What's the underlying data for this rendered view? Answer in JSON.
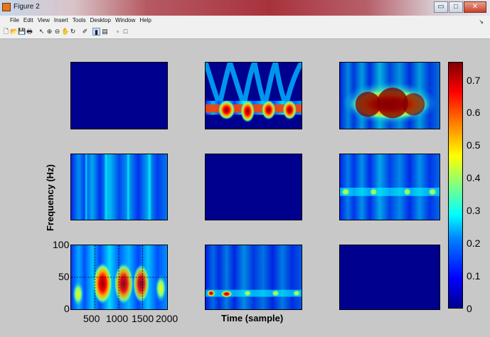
{
  "window": {
    "title": "Figure 2",
    "buttons": {
      "minimize": "▭",
      "maximize": "□",
      "close": "✕"
    }
  },
  "menu": [
    "File",
    "Edit",
    "View",
    "Insert",
    "Tools",
    "Desktop",
    "Window",
    "Help"
  ],
  "menu_dock_arrow": "↘",
  "toolbar": [
    {
      "name": "new-figure-icon",
      "glyph": "🗋"
    },
    {
      "name": "open-file-icon",
      "glyph": "📂"
    },
    {
      "name": "save-icon",
      "glyph": "💾"
    },
    {
      "name": "print-icon",
      "glyph": "🖶"
    },
    {
      "name": "edit-plot-arrow-icon",
      "glyph": "↖"
    },
    {
      "name": "zoom-in-icon",
      "glyph": "⊕"
    },
    {
      "name": "zoom-out-icon",
      "glyph": "⊖"
    },
    {
      "name": "pan-hand-icon",
      "glyph": "✋"
    },
    {
      "name": "rotate-3d-icon",
      "glyph": "↻"
    },
    {
      "name": "data-cursor-icon",
      "glyph": "✐"
    },
    {
      "name": "insert-colorbar-icon",
      "glyph": "▮"
    },
    {
      "name": "insert-legend-icon",
      "glyph": "▤"
    },
    {
      "name": "hide-plot-tools-icon",
      "glyph": "▫"
    },
    {
      "name": "show-plot-tools-icon",
      "glyph": "□"
    }
  ],
  "figure": {
    "ylabel": "Frequency (Hz)",
    "xlabel": "Time (sample)",
    "yticks": [
      "100",
      "50",
      "0"
    ],
    "xticks": [
      "500",
      "1000",
      "1500",
      "2000"
    ],
    "colorbar": {
      "ticks": [
        "0.7",
        "0.6",
        "0.5",
        "0.4",
        "0.3",
        "0.2",
        "0.1",
        "0"
      ],
      "colors": [
        "#00008f",
        "#0000ff",
        "#0080ff",
        "#00ffff",
        "#80ff80",
        "#ffff00",
        "#ff8000",
        "#ff0000",
        "#800000"
      ]
    },
    "panel_background": "#00008f"
  }
}
